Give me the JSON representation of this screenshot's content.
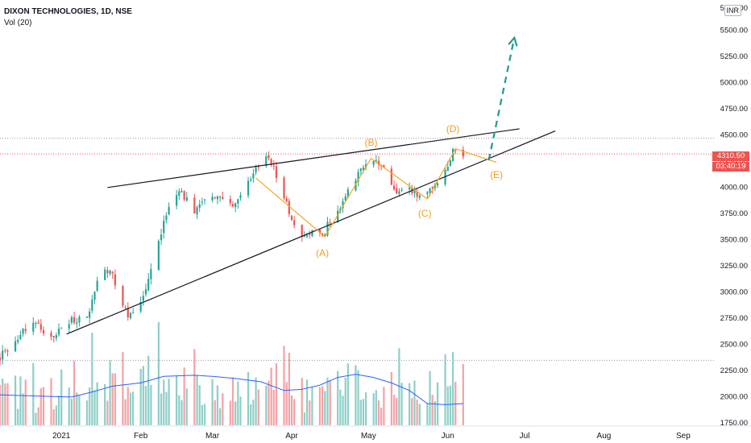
{
  "header": {
    "symbol": "DIXON TECHNOLOGIES, 1D, NSE",
    "volume_label": "Vol (20)",
    "currency": "INR"
  },
  "price_axis_top_label": "5750.00",
  "last_price": {
    "value": 4310.5,
    "label": "4310.50",
    "countdown": "03:40:19",
    "color": "#ef5350"
  },
  "colors": {
    "up": "#26a69a",
    "down": "#ef5350",
    "vol_up": "#8fcfc8",
    "vol_down": "#f4a3a6",
    "trendline": "#131722",
    "wave": "#f5a623",
    "wave_label": "#f0a020",
    "projection": "#22998b",
    "vol_ma": "#2962ff"
  },
  "chart_data": {
    "type": "candlestick",
    "title": "DIXON TECHNOLOGIES, 1D, NSE",
    "y_axis": {
      "ticks": [
        1750,
        2000,
        2250,
        2500,
        2750,
        3000,
        3250,
        3500,
        3750,
        4000,
        4250,
        4500,
        4750,
        5000,
        5250,
        5500
      ],
      "tick_labels": [
        "1750.00",
        "2000.00",
        "2250.00",
        "2500.00",
        "2750.00",
        "3000.00",
        "3250.00",
        "3500.00",
        "3750.00",
        "4000.00",
        "4250.00",
        "4500.00",
        "4750.00",
        "5000.00",
        "5250.00",
        "5500.00"
      ],
      "range": [
        1720,
        5780
      ]
    },
    "x_axis": {
      "labels": [
        {
          "text": "2021",
          "date": "2021-01-01"
        },
        {
          "text": "Feb",
          "date": "2021-02-01"
        },
        {
          "text": "Mar",
          "date": "2021-03-01"
        },
        {
          "text": "Apr",
          "date": "2021-04-01"
        },
        {
          "text": "May",
          "date": "2021-05-01"
        },
        {
          "text": "Jun",
          "date": "2021-06-01"
        },
        {
          "text": "Jul",
          "date": "2021-07-01"
        },
        {
          "text": "Aug",
          "date": "2021-08-01"
        },
        {
          "text": "Sep",
          "date": "2021-09-01"
        }
      ],
      "range": [
        "2020-12-08",
        "2021-09-13"
      ]
    },
    "horizontal_levels": [
      4460,
      2340
    ],
    "price_path": [
      [
        "2020-12-08",
        2380
      ],
      [
        "2020-12-16",
        2600
      ],
      [
        "2020-12-22",
        2700
      ],
      [
        "2020-12-28",
        2550
      ],
      [
        "2021-01-05",
        2720
      ],
      [
        "2021-01-12",
        2790
      ],
      [
        "2021-01-15",
        3100
      ],
      [
        "2021-01-18",
        3200
      ],
      [
        "2021-01-21",
        3150
      ],
      [
        "2021-01-27",
        2760
      ],
      [
        "2021-02-01",
        2870
      ],
      [
        "2021-02-05",
        3200
      ],
      [
        "2021-02-09",
        3550
      ],
      [
        "2021-02-12",
        3820
      ],
      [
        "2021-02-16",
        3950
      ],
      [
        "2021-02-22",
        3780
      ],
      [
        "2021-03-01",
        3920
      ],
      [
        "2021-03-05",
        3850
      ],
      [
        "2021-03-10",
        3830
      ],
      [
        "2021-03-17",
        4130
      ],
      [
        "2021-03-22",
        4280
      ],
      [
        "2021-03-25",
        4170
      ],
      [
        "2021-03-29",
        3900
      ],
      [
        "2021-04-02",
        3650
      ],
      [
        "2021-04-05",
        3550
      ],
      [
        "2021-04-09",
        3570
      ],
      [
        "2021-04-13",
        3510
      ],
      [
        "2021-04-16",
        3680
      ],
      [
        "2021-04-22",
        3900
      ],
      [
        "2021-04-28",
        4180
      ],
      [
        "2021-05-03",
        4270
      ],
      [
        "2021-05-07",
        4160
      ],
      [
        "2021-05-11",
        3960
      ],
      [
        "2021-05-17",
        3950
      ],
      [
        "2021-05-21",
        3900
      ],
      [
        "2021-05-26",
        4000
      ],
      [
        "2021-05-31",
        4140
      ],
      [
        "2021-06-03",
        4360
      ],
      [
        "2021-06-07",
        4310
      ]
    ],
    "volume_axis_range": [
      0,
      100
    ],
    "volume_ma": [
      [
        "2020-12-08",
        28
      ],
      [
        "2020-12-22",
        27
      ],
      [
        "2021-01-05",
        26
      ],
      [
        "2021-01-12",
        30
      ],
      [
        "2021-01-21",
        36
      ],
      [
        "2021-02-01",
        39
      ],
      [
        "2021-02-10",
        45
      ],
      [
        "2021-02-22",
        46
      ],
      [
        "2021-03-01",
        45
      ],
      [
        "2021-03-10",
        43
      ],
      [
        "2021-03-20",
        40
      ],
      [
        "2021-03-29",
        32
      ],
      [
        "2021-04-05",
        33
      ],
      [
        "2021-04-12",
        37
      ],
      [
        "2021-04-19",
        44
      ],
      [
        "2021-04-26",
        47
      ],
      [
        "2021-05-03",
        44
      ],
      [
        "2021-05-10",
        39
      ],
      [
        "2021-05-17",
        32
      ],
      [
        "2021-05-24",
        20
      ],
      [
        "2021-05-31",
        19
      ],
      [
        "2021-06-07",
        20
      ]
    ],
    "pattern": {
      "resistance_line": [
        [
          "2021-01-19",
          3990
        ],
        [
          "2021-06-29",
          4550
        ]
      ],
      "support_line": [
        [
          "2021-01-03",
          2590
        ],
        [
          "2021-07-13",
          4530
        ]
      ],
      "wave_lines": [
        [
          [
            "2021-03-18",
            4080
          ],
          [
            "2021-04-14",
            3520
          ]
        ],
        [
          [
            "2021-04-14",
            3520
          ],
          [
            "2021-05-02",
            4270
          ]
        ],
        [
          [
            "2021-05-02",
            4270
          ],
          [
            "2021-05-24",
            3880
          ]
        ],
        [
          [
            "2021-05-24",
            3880
          ],
          [
            "2021-06-04",
            4360
          ]
        ],
        [
          [
            "2021-06-04",
            4360
          ],
          [
            "2021-06-20",
            4230
          ]
        ]
      ],
      "wave_labels": [
        {
          "text": "(A)",
          "date": "2021-04-13",
          "value": 3335
        },
        {
          "text": "(B)",
          "date": "2021-05-02",
          "value": 4390
        },
        {
          "text": "(C)",
          "date": "2021-05-23",
          "value": 3710
        },
        {
          "text": "(D)",
          "date": "2021-06-03",
          "value": 4520
        },
        {
          "text": "(E)",
          "date": "2021-06-20",
          "value": 4080
        }
      ],
      "projection_arrow": [
        [
          "2021-06-17",
          4250
        ],
        [
          "2021-06-27",
          5420
        ]
      ]
    }
  }
}
